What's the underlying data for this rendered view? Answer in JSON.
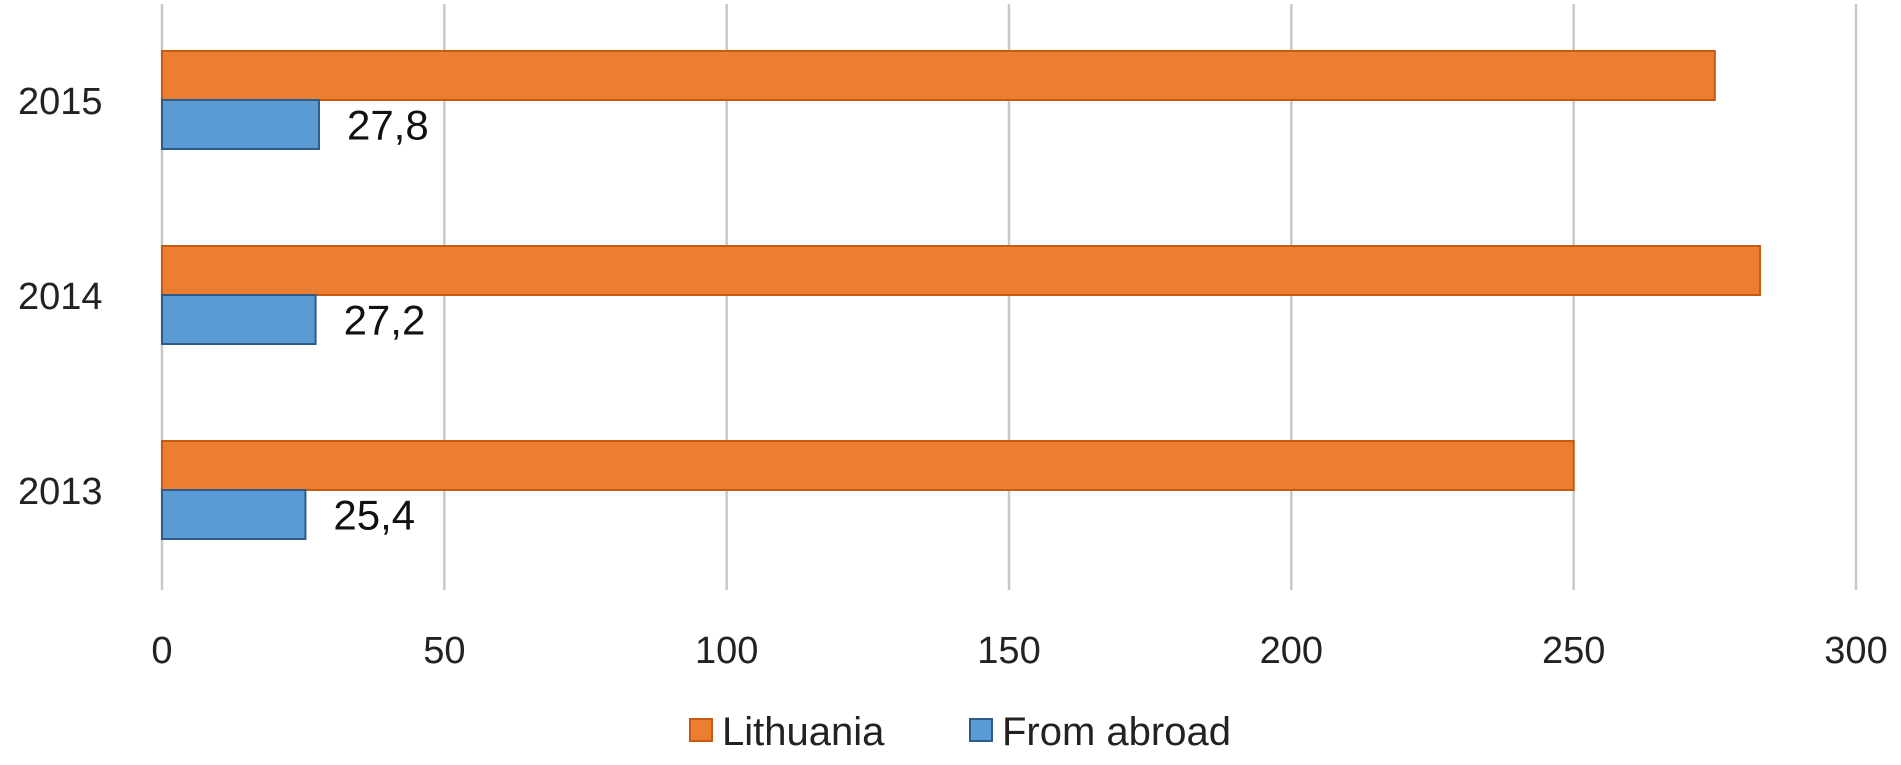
{
  "chart_data": {
    "type": "bar",
    "orientation": "horizontal",
    "categories": [
      "2015",
      "2014",
      "2013"
    ],
    "series": [
      {
        "name": "Lithuania",
        "values": [
          275,
          283,
          250
        ],
        "color": "#ED7D31",
        "stroke": "#C55A11"
      },
      {
        "name": "From abroad",
        "values": [
          27.8,
          27.2,
          25.4
        ],
        "color": "#5B9BD5",
        "stroke": "#2E5C8A",
        "labels": [
          "27,8",
          "27,2",
          "25,4"
        ]
      }
    ],
    "xlim": [
      0,
      300
    ],
    "xticks": [
      0,
      50,
      100,
      150,
      200,
      250,
      300
    ],
    "grid": true,
    "legend": "bottom"
  }
}
